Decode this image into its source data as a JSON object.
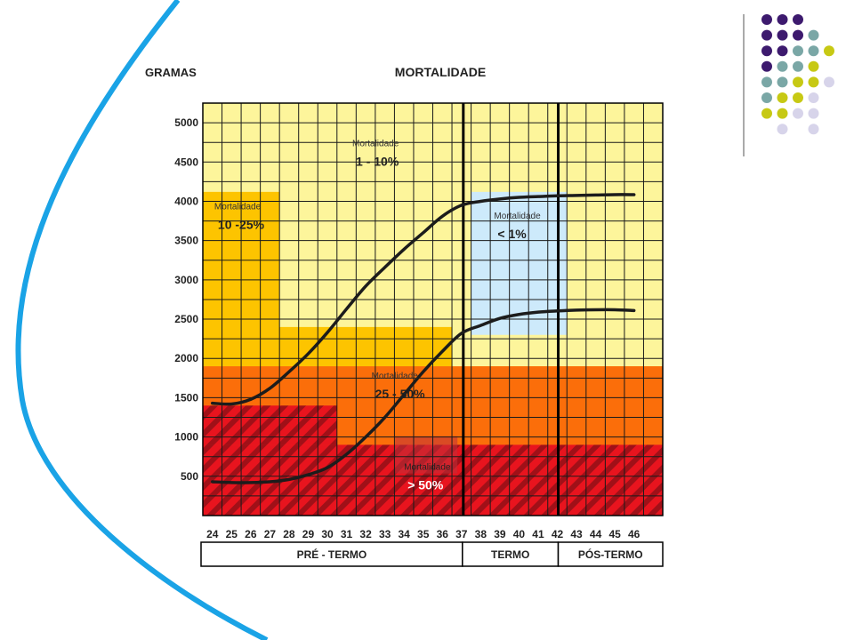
{
  "colors": {
    "arc": "#1aa3e6",
    "grid_line": "#1a1a1a",
    "zone_light_yellow": "#fdf59b",
    "zone_gold": "#fdc400",
    "zone_orange": "#fb6e0a",
    "zone_red": "#e8141e",
    "zone_stripe": "#a01018",
    "zone_light_blue": "#cdeafb",
    "curve": "#1c1c1c",
    "dot_purple": "#3d1a6e",
    "dot_teal": "#7aa7a6",
    "dot_olive": "#c7c914",
    "dot_lavender": "#d7d4ea"
  },
  "decor": {
    "dot_grid": [
      [
        "purple",
        "purple",
        "purple",
        "none",
        "none"
      ],
      [
        "purple",
        "purple",
        "purple",
        "teal",
        "none"
      ],
      [
        "purple",
        "purple",
        "teal",
        "teal",
        "olive"
      ],
      [
        "purple",
        "teal",
        "teal",
        "olive",
        "none"
      ],
      [
        "teal",
        "teal",
        "olive",
        "olive",
        "lavender"
      ],
      [
        "teal",
        "olive",
        "olive",
        "lavender",
        "none"
      ],
      [
        "olive",
        "olive",
        "lavender",
        "lavender",
        "none"
      ],
      [
        "none",
        "lavender",
        "none",
        "lavender",
        "none"
      ]
    ]
  },
  "chart_data": {
    "type": "line",
    "title": "MORTALIDADE",
    "ylabel": "GRAMAS",
    "xlim": [
      23.5,
      47.5
    ],
    "ylim": [
      0,
      5250
    ],
    "y_ticks": [
      500,
      1000,
      1500,
      2000,
      2500,
      3000,
      3500,
      4000,
      4500,
      5000
    ],
    "x_ticks": [
      {
        "value": 24,
        "label": "24"
      },
      {
        "value": 25,
        "label": "25"
      },
      {
        "value": 26,
        "label": "26"
      },
      {
        "value": 27,
        "label": "27"
      },
      {
        "value": 28,
        "label": "28"
      },
      {
        "value": 29,
        "label": "29"
      },
      {
        "value": 30,
        "label": "30"
      },
      {
        "value": 31,
        "label": "31"
      },
      {
        "value": 32,
        "label": "32"
      },
      {
        "value": 33,
        "label": "33"
      },
      {
        "value": 34,
        "label": "34"
      },
      {
        "value": 35,
        "label": "35"
      },
      {
        "value": 36,
        "label": "36"
      },
      {
        "value": 37,
        "label": "37"
      },
      {
        "value": 38,
        "label": "38"
      },
      {
        "value": 39,
        "label": "39"
      },
      {
        "value": 40,
        "label": "40"
      },
      {
        "value": 41,
        "label": "41"
      },
      {
        "value": 42,
        "label": "42"
      },
      {
        "value": 43,
        "label": "43"
      },
      {
        "value": 44,
        "label": "44"
      },
      {
        "value": 45,
        "label": "45"
      },
      {
        "value": 46,
        "label": "46"
      }
    ],
    "grid": true,
    "dividers_x": [
      37,
      42
    ],
    "periods": [
      {
        "label": "PRÉ - TERMO",
        "from": 23.5,
        "to": 37
      },
      {
        "label": "TERMO",
        "from": 37,
        "to": 42
      },
      {
        "label": "PÓS-TERMO",
        "from": 42,
        "to": 47.5
      }
    ],
    "zones": [
      {
        "x": [
          23.5,
          47.5
        ],
        "y": [
          0,
          5250
        ],
        "color": "light_yellow"
      },
      {
        "x": [
          23.5,
          27.5
        ],
        "y": [
          0,
          4120
        ],
        "color": "gold"
      },
      {
        "x": [
          23.5,
          36.5
        ],
        "y": [
          0,
          2400
        ],
        "color": "gold"
      },
      {
        "x": [
          37.5,
          47.5
        ],
        "y": [
          0,
          1900
        ],
        "color": "gold"
      },
      {
        "x": [
          23.5,
          47.5
        ],
        "y": [
          0,
          1900
        ],
        "color": "orange"
      },
      {
        "x": [
          23.5,
          47.5
        ],
        "y": [
          0,
          1400
        ],
        "color": "orange"
      },
      {
        "x": [
          23.5,
          47.5
        ],
        "y": [
          0,
          900
        ],
        "color": "red"
      },
      {
        "x": [
          23.5,
          30.5
        ],
        "y": [
          900,
          1400
        ],
        "color": "red_striped"
      },
      {
        "x": [
          23.5,
          47.5
        ],
        "y": [
          0,
          900
        ],
        "color": "red_striped"
      },
      {
        "x": [
          37.5,
          42.5
        ],
        "y": [
          2300,
          4120
        ],
        "color": "light_blue"
      }
    ],
    "annotations": [
      {
        "label": "Mortalidade",
        "value": "1 - 10%",
        "x": 31.3,
        "y": 4700
      },
      {
        "label": "Mortalidade",
        "value": "10 -25%",
        "x": 24.1,
        "y": 3900
      },
      {
        "label": "Mortalidade",
        "value": "< 1%",
        "x": 38.7,
        "y": 3780
      },
      {
        "label": "Mortalidade",
        "value": "25 - 50%",
        "x": 32.3,
        "y": 1740
      },
      {
        "label": "Mortalidade",
        "value": "> 50%",
        "x": 34.0,
        "y": 580
      }
    ],
    "series": [
      {
        "x": [
          24,
          25,
          26,
          27,
          28,
          29,
          30,
          31,
          32,
          33,
          34,
          35,
          36,
          37,
          38,
          39,
          40,
          41,
          42,
          43,
          44,
          45,
          46
        ],
        "values": [
          1430,
          1420,
          1480,
          1620,
          1830,
          2060,
          2330,
          2630,
          2920,
          3160,
          3390,
          3600,
          3810,
          3950,
          4000,
          4030,
          4050,
          4060,
          4070,
          4075,
          4080,
          4085,
          4085
        ]
      },
      {
        "x": [
          24,
          25,
          26,
          27,
          28,
          29,
          30,
          31,
          32,
          33,
          34,
          35,
          36,
          37,
          38,
          39,
          40,
          41,
          42,
          43,
          44,
          45,
          46
        ],
        "values": [
          430,
          420,
          420,
          430,
          460,
          520,
          610,
          780,
          1000,
          1250,
          1540,
          1830,
          2090,
          2320,
          2420,
          2510,
          2560,
          2590,
          2605,
          2615,
          2620,
          2620,
          2610
        ]
      }
    ]
  }
}
